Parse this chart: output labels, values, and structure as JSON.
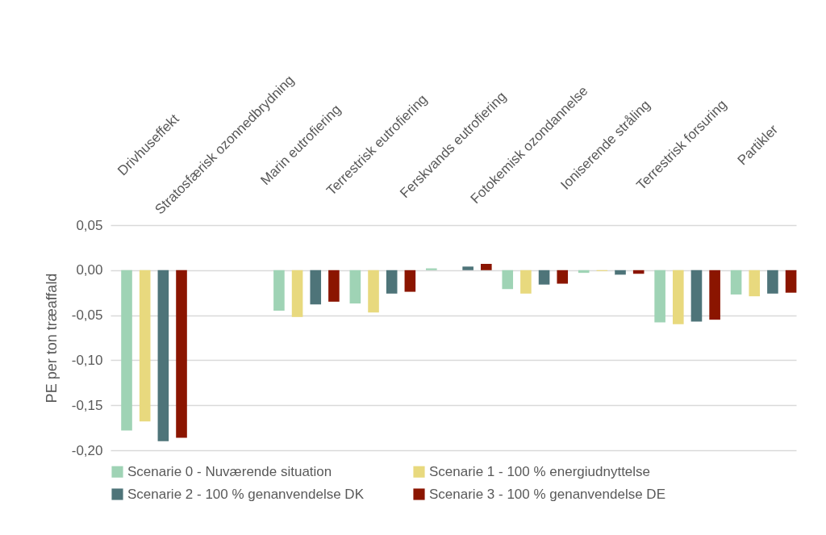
{
  "chart_data": {
    "type": "bar",
    "ylabel": "PE per ton træaffald",
    "categories": [
      "Drivhuseffekt",
      "Stratosfærisk ozonnedbrydning",
      "Marin eutrofiering",
      "Terrestrisk eutrofiering",
      "Ferskvands eutrofiering",
      "Fotokemisk ozondannelse",
      "Ioniserende stråling",
      "Terrestrisk forsuring",
      "Partikler"
    ],
    "series": [
      {
        "name": "Scenarie 0 - Nuværende situation",
        "color": "#9fd3b5",
        "values": [
          -0.178,
          0,
          -0.045,
          -0.037,
          0.002,
          -0.021,
          -0.003,
          -0.058,
          -0.027
        ]
      },
      {
        "name": "Scenarie 1 - 100 % energiudnyttelse",
        "color": "#e8d97e",
        "values": [
          -0.168,
          0,
          -0.052,
          -0.047,
          0,
          -0.026,
          -0.001,
          -0.06,
          -0.029
        ]
      },
      {
        "name": "Scenarie 2 - 100 % genanvendelse DK",
        "color": "#4e7479",
        "values": [
          -0.19,
          0,
          -0.038,
          -0.026,
          0.004,
          -0.016,
          -0.005,
          -0.057,
          -0.026
        ]
      },
      {
        "name": "Scenarie 3 - 100 % genanvendelse DE",
        "color": "#8b1500",
        "values": [
          -0.186,
          0,
          -0.035,
          -0.024,
          0.007,
          -0.015,
          -0.004,
          -0.055,
          -0.025
        ]
      }
    ],
    "ylim": [
      -0.2,
      0.05
    ],
    "yticks": [
      {
        "value": 0.05,
        "label": "0,05"
      },
      {
        "value": 0,
        "label": "0,00"
      },
      {
        "value": -0.05,
        "label": "-0,05"
      },
      {
        "value": -0.1,
        "label": "-0,10"
      },
      {
        "value": -0.15,
        "label": "-0,15"
      },
      {
        "value": -0.2,
        "label": "-0,20"
      }
    ],
    "grid": "y",
    "legend": "bottom"
  }
}
